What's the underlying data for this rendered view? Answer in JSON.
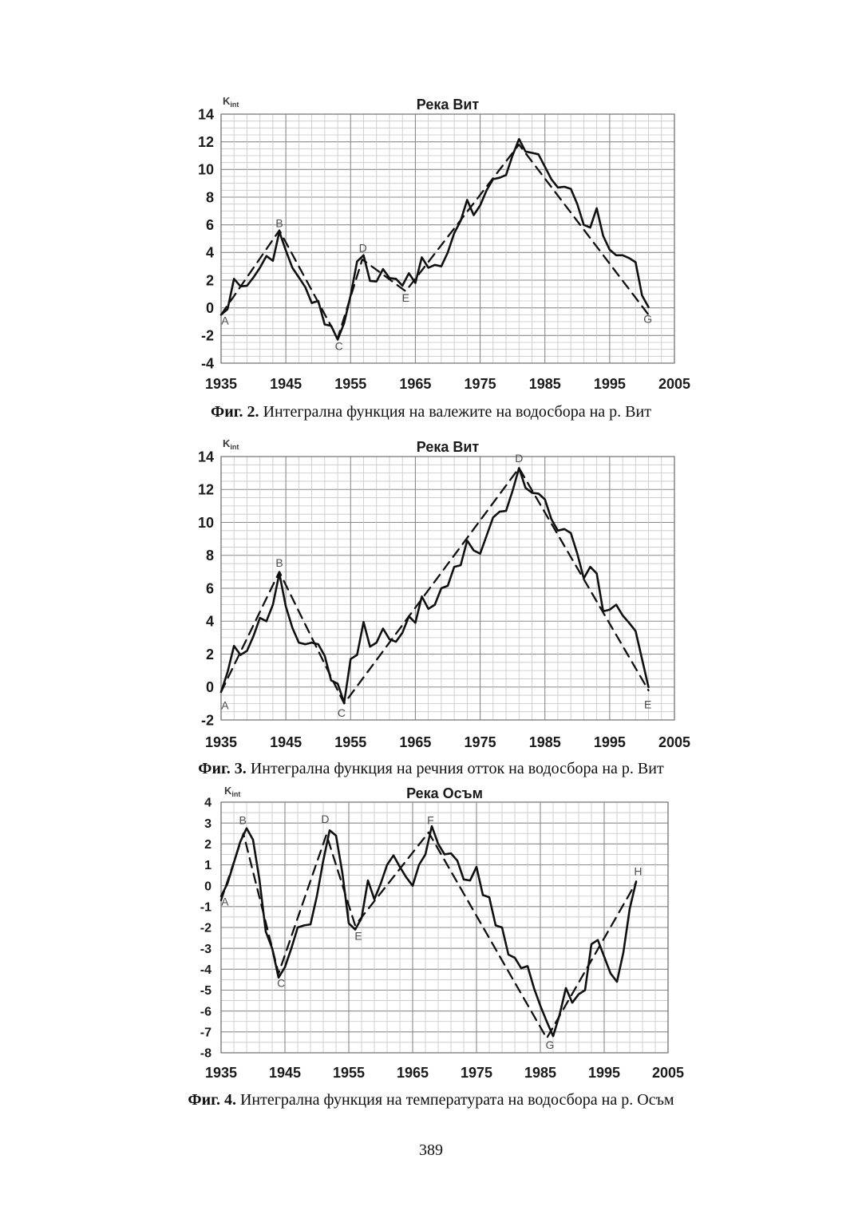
{
  "page": {
    "number": "389"
  },
  "figures": [
    {
      "caption_bold": "Фиг. 2.",
      "caption_text": " Интегрална функция на валежите на водосбора на р. Вит"
    },
    {
      "caption_bold": "Фиг. 3.",
      "caption_text": " Интегрална функция на речния отток на водосбора на р. Вит"
    },
    {
      "caption_bold": "Фиг. 4.",
      "caption_text": " Интегрална функция на температурата на водосбора на р. Осъм"
    }
  ],
  "chart_data": [
    {
      "type": "line",
      "title": "Река Вит",
      "y_axis_label": "K",
      "y_axis_label_sub": "int",
      "xlim": [
        1935,
        2005
      ],
      "ylim": [
        -4,
        14
      ],
      "x_ticks": [
        "1935",
        "1945",
        "1955",
        "1965",
        "1975",
        "1985",
        "1995",
        "2005"
      ],
      "y_ticks": [
        "14",
        "12",
        "10",
        "8",
        "6",
        "4",
        "2",
        "0",
        "-2",
        "-4"
      ],
      "x_tick_step": 10,
      "x_minor_step": 2,
      "y_tick_step": 2,
      "y_minor_step": 0.5,
      "grid": true,
      "legend": "none",
      "series": [
        {
          "name": "integral-curve",
          "style": "solid",
          "x_start": 1935,
          "values": [
            -0.5,
            -0.1,
            2.1,
            1.55,
            1.6,
            2.2,
            2.9,
            3.75,
            3.4,
            5.5,
            4.15,
            2.9,
            2.2,
            1.5,
            0.35,
            0.5,
            -1.2,
            -1.3,
            -2.3,
            -1.1,
            0.9,
            3.35,
            3.8,
            1.95,
            1.9,
            2.8,
            2.15,
            2.1,
            1.6,
            2.5,
            1.8,
            3.65,
            2.9,
            3.1,
            3.0,
            4.0,
            5.4,
            6.3,
            7.8,
            6.7,
            7.4,
            8.5,
            9.3,
            9.4,
            9.6,
            11.0,
            12.2,
            11.3,
            11.2,
            11.1,
            10.2,
            9.3,
            8.7,
            8.75,
            8.6,
            7.5,
            6.0,
            5.8,
            7.2,
            5.2,
            4.2,
            3.8,
            3.8,
            3.6,
            3.3,
            0.9,
            0.05
          ]
        },
        {
          "name": "trend-line",
          "style": "dashed",
          "points": [
            [
              1935,
              -0.5
            ],
            [
              1944,
              5.6
            ],
            [
              1953,
              -2.2
            ],
            [
              1956.8,
              3.5
            ],
            [
              1963.5,
              1.2
            ],
            [
              1981,
              11.8
            ],
            [
              2001,
              -0.5
            ]
          ]
        }
      ],
      "point_labels": [
        {
          "label": "A",
          "x": 1935.6,
          "y": -1.2
        },
        {
          "label": "B",
          "x": 1944,
          "y": 5.85
        },
        {
          "label": "C",
          "x": 1953.2,
          "y": -3.05
        },
        {
          "label": "D",
          "x": 1956.9,
          "y": 4.05
        },
        {
          "label": "E",
          "x": 1963.5,
          "y": 0.45
        },
        {
          "label": "G",
          "x": 2000.9,
          "y": -1.1
        }
      ]
    },
    {
      "type": "line",
      "title": "Река Вит",
      "y_axis_label": "K",
      "y_axis_label_sub": "int",
      "xlim": [
        1935,
        2005
      ],
      "ylim": [
        -2,
        14
      ],
      "x_ticks": [
        "1935",
        "1945",
        "1955",
        "1965",
        "1975",
        "1985",
        "1995",
        "2005"
      ],
      "y_ticks": [
        "14",
        "12",
        "10",
        "8",
        "6",
        "4",
        "2",
        "0",
        "-2"
      ],
      "x_tick_step": 10,
      "x_minor_step": 2,
      "y_tick_step": 2,
      "y_minor_step": 0.5,
      "grid": true,
      "legend": "none",
      "series": [
        {
          "name": "integral-curve",
          "style": "solid",
          "x_start": 1935,
          "values": [
            -0.3,
            0.9,
            2.5,
            1.95,
            2.2,
            3.1,
            4.2,
            4.0,
            5.0,
            6.9,
            4.9,
            3.6,
            2.7,
            2.6,
            2.7,
            2.6,
            1.9,
            0.4,
            0.2,
            -0.95,
            1.7,
            1.95,
            3.95,
            2.45,
            2.7,
            3.55,
            2.9,
            2.75,
            3.3,
            4.3,
            3.9,
            5.5,
            4.75,
            5.0,
            6.0,
            6.15,
            7.3,
            7.4,
            8.9,
            8.3,
            8.1,
            9.2,
            10.3,
            10.65,
            10.7,
            11.9,
            13.3,
            12.1,
            11.8,
            11.75,
            11.4,
            10.2,
            9.5,
            9.6,
            9.35,
            8.1,
            6.6,
            7.3,
            6.9,
            4.6,
            4.7,
            5.0,
            4.35,
            3.9,
            3.4,
            1.7,
            0.0
          ]
        },
        {
          "name": "trend-line",
          "style": "dashed",
          "points": [
            [
              1935,
              -0.3
            ],
            [
              1944,
              7.0
            ],
            [
              1954,
              -1.0
            ],
            [
              1981,
              13.3
            ],
            [
              2001,
              -0.2
            ]
          ]
        }
      ],
      "point_labels": [
        {
          "label": "A",
          "x": 1935.6,
          "y": -1.35
        },
        {
          "label": "B",
          "x": 1944,
          "y": 7.3
        },
        {
          "label": "C",
          "x": 1953.6,
          "y": -1.8
        },
        {
          "label": "D",
          "x": 1981,
          "y": 13.65
        },
        {
          "label": "E",
          "x": 2000.9,
          "y": -1.3
        }
      ]
    },
    {
      "type": "line",
      "title": "Река Осъм",
      "y_axis_label": "K",
      "y_axis_label_sub": "int",
      "xlim": [
        1935,
        2005
      ],
      "ylim": [
        -8,
        4
      ],
      "x_ticks": [
        "1935",
        "1945",
        "1955",
        "1965",
        "1975",
        "1985",
        "1995",
        "2005"
      ],
      "y_ticks": [
        "4",
        "3",
        "2",
        "1",
        "0",
        "-1",
        "-2",
        "-3",
        "-4",
        "-5",
        "-6",
        "-7",
        "-8"
      ],
      "x_tick_step": 10,
      "x_minor_step": 2,
      "y_tick_step": 1,
      "y_minor_step": 0.5,
      "grid": true,
      "legend": "none",
      "series": [
        {
          "name": "integral-curve",
          "style": "solid",
          "x_start": 1935,
          "values": [
            -0.5,
            0.1,
            1.1,
            2.1,
            2.75,
            2.2,
            0.3,
            -2.2,
            -3.0,
            -4.4,
            -3.9,
            -3.0,
            -2.0,
            -1.9,
            -1.85,
            -0.5,
            1.2,
            2.65,
            2.4,
            0.6,
            -1.8,
            -2.1,
            -1.55,
            0.25,
            -0.65,
            0.1,
            1.0,
            1.45,
            0.9,
            0.4,
            0.0,
            1.0,
            1.5,
            2.85,
            2.0,
            1.5,
            1.55,
            1.2,
            0.3,
            0.25,
            0.9,
            -0.45,
            -0.55,
            -1.9,
            -2.0,
            -3.3,
            -3.45,
            -3.95,
            -3.85,
            -4.9,
            -5.75,
            -6.5,
            -7.2,
            -6.2,
            -4.9,
            -5.6,
            -5.2,
            -5.0,
            -2.8,
            -2.6,
            -3.4,
            -4.2,
            -4.6,
            -3.2,
            -1.1,
            0.2
          ]
        },
        {
          "name": "trend-line",
          "style": "dashed",
          "points": [
            [
              1935,
              -0.7
            ],
            [
              1938.5,
              2.5
            ],
            [
              1944,
              -4.2
            ],
            [
              1951.5,
              2.45
            ],
            [
              1956,
              -1.9
            ],
            [
              1967.5,
              2.55
            ],
            [
              1986,
              -7.3
            ],
            [
              2000,
              0.15
            ]
          ]
        }
      ],
      "point_labels": [
        {
          "label": "A",
          "x": 1935.6,
          "y": -0.95
        },
        {
          "label": "B",
          "x": 1938.4,
          "y": 2.95
        },
        {
          "label": "C",
          "x": 1944.4,
          "y": -4.85
        },
        {
          "label": "D",
          "x": 1951.3,
          "y": 3.0
        },
        {
          "label": "E",
          "x": 1956.5,
          "y": -2.6
        },
        {
          "label": "F",
          "x": 1967.8,
          "y": 2.95
        },
        {
          "label": "G",
          "x": 1986.5,
          "y": -7.8
        },
        {
          "label": "H",
          "x": 2000.3,
          "y": 0.5
        }
      ]
    }
  ]
}
